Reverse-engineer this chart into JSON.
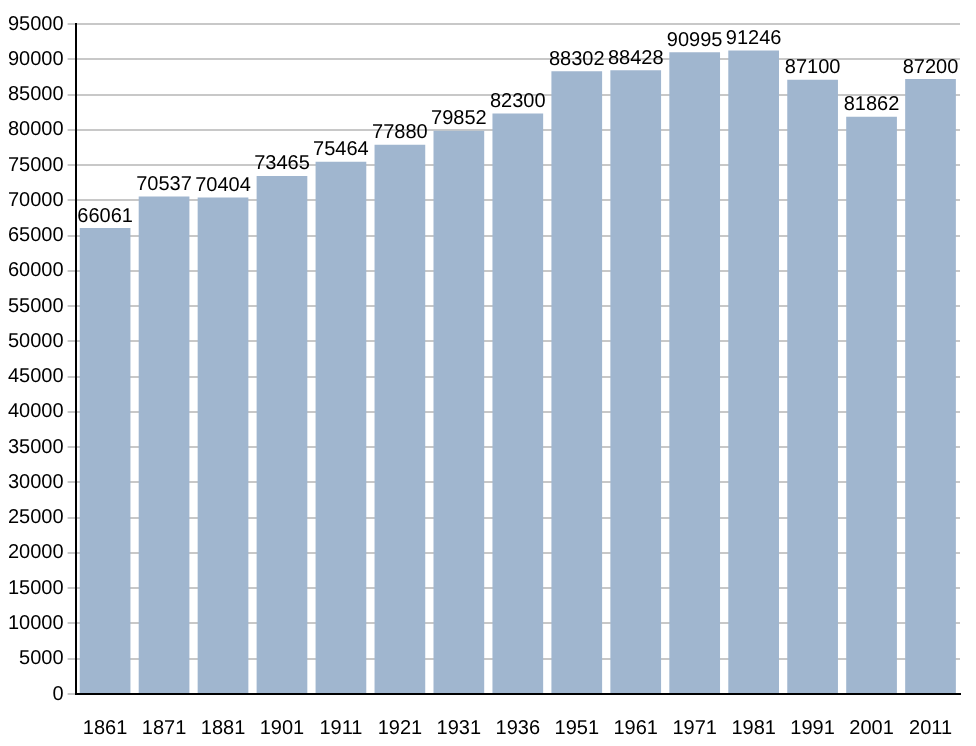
{
  "chart_data": {
    "type": "bar",
    "categories": [
      "1861",
      "1871",
      "1881",
      "1901",
      "1911",
      "1921",
      "1931",
      "1936",
      "1951",
      "1961",
      "1971",
      "1981",
      "1991",
      "2001",
      "2011"
    ],
    "values": [
      66061,
      70537,
      70404,
      73465,
      75464,
      77880,
      79852,
      82300,
      88302,
      88428,
      90995,
      91246,
      87100,
      81862,
      87200
    ],
    "color": "#a0b6cf",
    "ylim": [
      0,
      95000
    ],
    "yticks": [
      0,
      5000,
      10000,
      15000,
      20000,
      25000,
      30000,
      35000,
      40000,
      45000,
      50000,
      55000,
      60000,
      65000,
      70000,
      75000,
      80000,
      85000,
      90000,
      95000
    ],
    "grid": "y",
    "data_labels": true
  }
}
